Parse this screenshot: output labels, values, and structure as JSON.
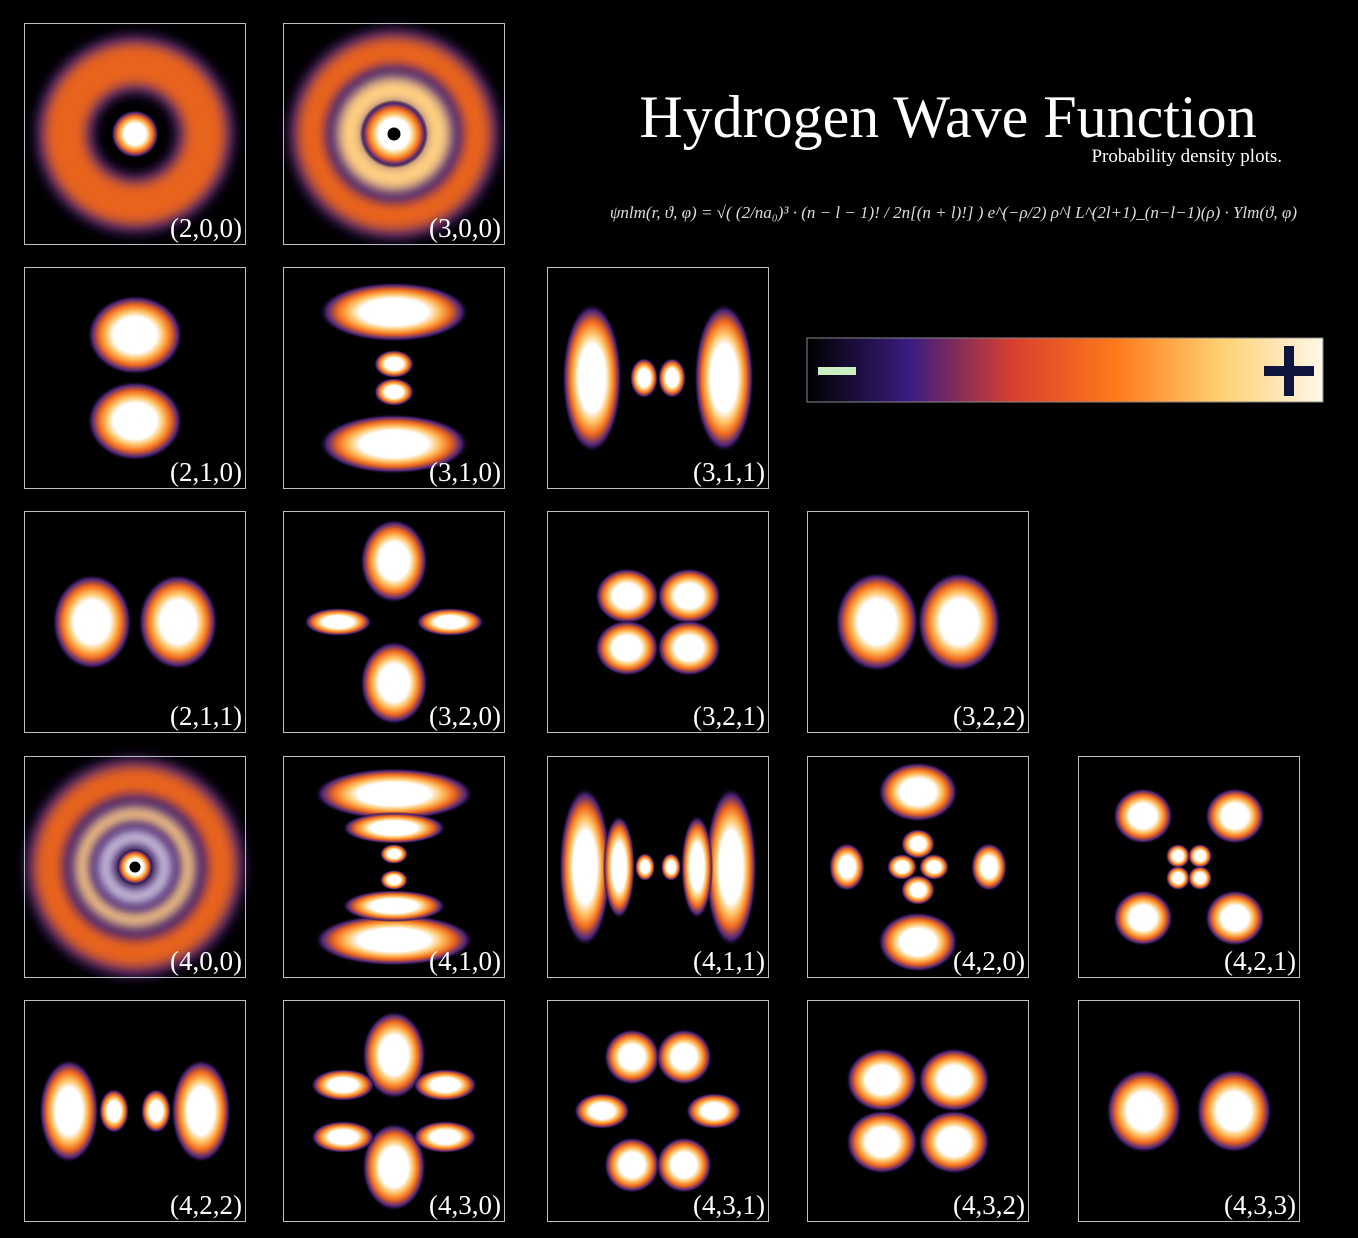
{
  "header": {
    "title": "Hydrogen Wave Function",
    "subtitle": "Probability density plots.",
    "formula": "ψnlm(r, ϑ, φ) = √( (2/na₀)³ · (n − l − 1)! / 2n[(n + l)!] ) e^(−ρ/2) ρ^l L^(2l+1)_(n−l−1)(ρ) · Ylm(ϑ, φ)"
  },
  "panels": [
    [
      "(2,0,0)",
      "(3,0,0)"
    ],
    [
      "(2,1,0)",
      "(3,1,0)",
      "(3,1,1)"
    ],
    [
      "(2,1,1)",
      "(3,2,0)",
      "(3,2,1)",
      "(3,2,2)"
    ],
    [
      "(4,0,0)",
      "(4,1,0)",
      "(4,1,1)",
      "(4,2,0)",
      "(4,2,1)"
    ],
    [
      "(4,2,2)",
      "(4,3,0)",
      "(4,3,1)",
      "(4,3,2)",
      "(4,3,3)"
    ]
  ]
}
